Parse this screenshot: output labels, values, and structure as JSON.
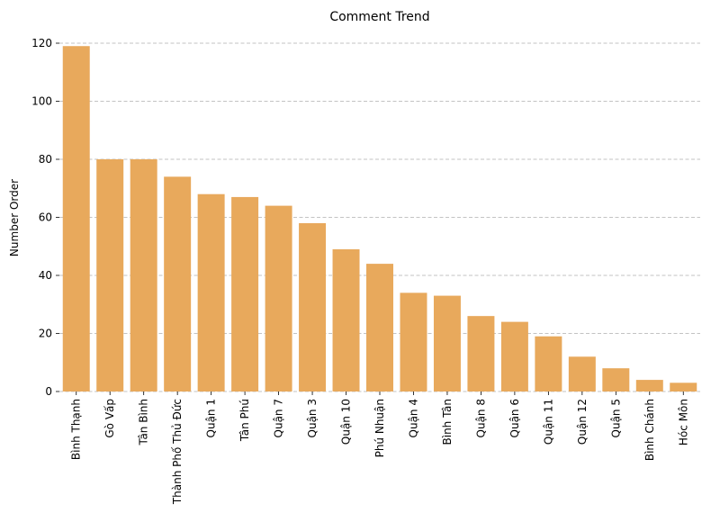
{
  "chart_data": {
    "type": "bar",
    "title": "Comment Trend",
    "xlabel": "",
    "ylabel": "Number Order",
    "ylim": [
      0,
      120
    ],
    "yticks": [
      0,
      20,
      40,
      60,
      80,
      100,
      120
    ],
    "grid": "y",
    "bar_color": "#E8A95C",
    "categories": [
      "Bình Thạnh",
      "Gò Vấp",
      "Tân Bình",
      "Thành Phố Thủ Đức",
      "Quận 1",
      "Tân Phú",
      "Quận 7",
      "Quận 3",
      "Quận 10",
      "Phú Nhuận",
      "Quận 4",
      "Bình Tân",
      "Quận 8",
      "Quận 6",
      "Quận 11",
      "Quận 12",
      "Quận 5",
      "Bình Chánh",
      "Hóc Môn"
    ],
    "values": [
      119,
      80,
      80,
      74,
      68,
      67,
      64,
      58,
      49,
      44,
      34,
      33,
      26,
      24,
      19,
      12,
      8,
      4,
      3
    ]
  }
}
